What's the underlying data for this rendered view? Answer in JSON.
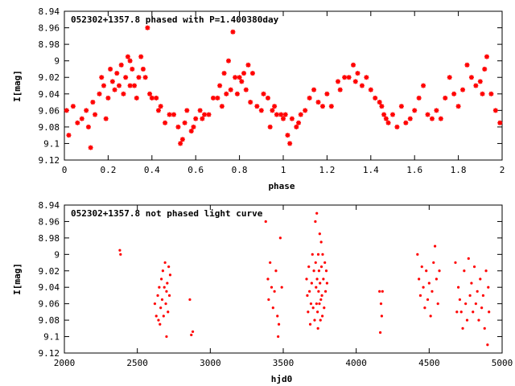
{
  "chart_data": [
    {
      "type": "scatter",
      "title": "052302+1357.8 phased with P=1.400380day",
      "xlabel": "phase",
      "ylabel": "I[mag]",
      "xlim": [
        0,
        2
      ],
      "ylim": [
        8.94,
        9.12
      ],
      "y_inverted": true,
      "x_ticks": [
        "0",
        "0.2",
        "0.4",
        "0.6",
        "0.8",
        "1",
        "1.2",
        "1.4",
        "1.6",
        "1.8",
        "2"
      ],
      "y_ticks": [
        "8.94",
        "8.96",
        "8.98",
        "9",
        "9.02",
        "9.04",
        "9.06",
        "9.08",
        "9.1",
        "9.12"
      ],
      "marker_color": "#ff0000",
      "points": [
        [
          0.01,
          9.06
        ],
        [
          0.02,
          9.09
        ],
        [
          0.04,
          9.055
        ],
        [
          0.06,
          9.075
        ],
        [
          0.08,
          9.07
        ],
        [
          0.1,
          9.06
        ],
        [
          0.11,
          9.08
        ],
        [
          0.12,
          9.105
        ],
        [
          0.13,
          9.05
        ],
        [
          0.14,
          9.065
        ],
        [
          0.16,
          9.04
        ],
        [
          0.17,
          9.02
        ],
        [
          0.18,
          9.03
        ],
        [
          0.19,
          9.07
        ],
        [
          0.2,
          9.045
        ],
        [
          0.21,
          9.01
        ],
        [
          0.22,
          9.025
        ],
        [
          0.23,
          9.035
        ],
        [
          0.24,
          9.015
        ],
        [
          0.25,
          9.03
        ],
        [
          0.26,
          9.005
        ],
        [
          0.27,
          9.04
        ],
        [
          0.28,
          9.02
        ],
        [
          0.29,
          8.995
        ],
        [
          0.3,
          9.0
        ],
        [
          0.3,
          9.03
        ],
        [
          0.31,
          9.01
        ],
        [
          0.32,
          9.03
        ],
        [
          0.33,
          9.045
        ],
        [
          0.34,
          9.02
        ],
        [
          0.35,
          8.995
        ],
        [
          0.36,
          9.01
        ],
        [
          0.37,
          9.02
        ],
        [
          0.38,
          8.96
        ],
        [
          0.39,
          9.04
        ],
        [
          0.4,
          9.045
        ],
        [
          0.42,
          9.045
        ],
        [
          0.43,
          9.06
        ],
        [
          0.44,
          9.055
        ],
        [
          0.46,
          9.075
        ],
        [
          0.48,
          9.065
        ],
        [
          0.5,
          9.065
        ],
        [
          0.52,
          9.08
        ],
        [
          0.53,
          9.1
        ],
        [
          0.54,
          9.095
        ],
        [
          0.55,
          9.075
        ],
        [
          0.56,
          9.06
        ],
        [
          0.58,
          9.085
        ],
        [
          0.59,
          9.08
        ],
        [
          0.6,
          9.07
        ],
        [
          0.62,
          9.06
        ],
        [
          0.63,
          9.07
        ],
        [
          0.64,
          9.065
        ],
        [
          0.66,
          9.065
        ],
        [
          0.68,
          9.045
        ],
        [
          0.7,
          9.045
        ],
        [
          0.71,
          9.03
        ],
        [
          0.72,
          9.055
        ],
        [
          0.73,
          9.015
        ],
        [
          0.74,
          9.04
        ],
        [
          0.75,
          9.0
        ],
        [
          0.76,
          9.035
        ],
        [
          0.77,
          8.965
        ],
        [
          0.78,
          9.02
        ],
        [
          0.79,
          9.04
        ],
        [
          0.8,
          9.02
        ],
        [
          0.81,
          9.025
        ],
        [
          0.82,
          9.015
        ],
        [
          0.83,
          9.035
        ],
        [
          0.84,
          9.005
        ],
        [
          0.85,
          9.05
        ],
        [
          0.86,
          9.015
        ],
        [
          0.88,
          9.055
        ],
        [
          0.9,
          9.06
        ],
        [
          0.91,
          9.04
        ],
        [
          0.93,
          9.045
        ],
        [
          0.94,
          9.08
        ],
        [
          0.95,
          9.06
        ],
        [
          0.96,
          9.055
        ],
        [
          0.97,
          9.065
        ],
        [
          0.99,
          9.065
        ],
        [
          1.0,
          9.07
        ],
        [
          1.01,
          9.065
        ],
        [
          1.02,
          9.09
        ],
        [
          1.03,
          9.1
        ],
        [
          1.04,
          9.07
        ],
        [
          1.06,
          9.08
        ],
        [
          1.07,
          9.075
        ],
        [
          1.08,
          9.065
        ],
        [
          1.1,
          9.06
        ],
        [
          1.12,
          9.045
        ],
        [
          1.14,
          9.035
        ],
        [
          1.16,
          9.05
        ],
        [
          1.18,
          9.055
        ],
        [
          1.2,
          9.04
        ],
        [
          1.22,
          9.055
        ],
        [
          1.25,
          9.025
        ],
        [
          1.26,
          9.035
        ],
        [
          1.28,
          9.02
        ],
        [
          1.3,
          9.02
        ],
        [
          1.32,
          9.005
        ],
        [
          1.33,
          9.025
        ],
        [
          1.34,
          9.015
        ],
        [
          1.36,
          9.03
        ],
        [
          1.38,
          9.02
        ],
        [
          1.4,
          9.035
        ],
        [
          1.42,
          9.045
        ],
        [
          1.44,
          9.05
        ],
        [
          1.45,
          9.055
        ],
        [
          1.46,
          9.065
        ],
        [
          1.47,
          9.07
        ],
        [
          1.48,
          9.075
        ],
        [
          1.5,
          9.065
        ],
        [
          1.52,
          9.08
        ],
        [
          1.54,
          9.055
        ],
        [
          1.56,
          9.075
        ],
        [
          1.58,
          9.07
        ],
        [
          1.6,
          9.06
        ],
        [
          1.62,
          9.045
        ],
        [
          1.64,
          9.03
        ],
        [
          1.66,
          9.065
        ],
        [
          1.68,
          9.07
        ],
        [
          1.7,
          9.06
        ],
        [
          1.72,
          9.07
        ],
        [
          1.74,
          9.045
        ],
        [
          1.76,
          9.02
        ],
        [
          1.78,
          9.04
        ],
        [
          1.8,
          9.055
        ],
        [
          1.82,
          9.035
        ],
        [
          1.84,
          9.005
        ],
        [
          1.86,
          9.02
        ],
        [
          1.88,
          9.03
        ],
        [
          1.9,
          9.025
        ],
        [
          1.91,
          9.04
        ],
        [
          1.92,
          9.01
        ],
        [
          1.93,
          8.995
        ],
        [
          1.95,
          9.04
        ],
        [
          1.97,
          9.06
        ],
        [
          1.99,
          9.075
        ]
      ]
    },
    {
      "type": "scatter",
      "title": "052302+1357.8 not phased light curve",
      "xlabel": "hjd0",
      "ylabel": "I[mag]",
      "xlim": [
        2000,
        5000
      ],
      "ylim": [
        8.94,
        9.12
      ],
      "y_inverted": true,
      "x_ticks": [
        "2000",
        "2500",
        "3000",
        "3500",
        "4000",
        "4500",
        "5000"
      ],
      "y_ticks": [
        "8.94",
        "8.96",
        "8.98",
        "9",
        "9.02",
        "9.04",
        "9.06",
        "9.08",
        "9.1",
        "9.12"
      ],
      "marker_color": "#ff0000",
      "points": [
        [
          2380,
          8.995
        ],
        [
          2385,
          9.0
        ],
        [
          2620,
          9.06
        ],
        [
          2630,
          9.075
        ],
        [
          2640,
          9.05
        ],
        [
          2645,
          9.08
        ],
        [
          2650,
          9.04
        ],
        [
          2655,
          9.085
        ],
        [
          2660,
          9.065
        ],
        [
          2665,
          9.03
        ],
        [
          2670,
          9.055
        ],
        [
          2675,
          9.02
        ],
        [
          2680,
          9.075
        ],
        [
          2685,
          9.04
        ],
        [
          2690,
          9.01
        ],
        [
          2695,
          9.06
        ],
        [
          2700,
          9.045
        ],
        [
          2705,
          9.035
        ],
        [
          2710,
          9.07
        ],
        [
          2715,
          9.015
        ],
        [
          2720,
          9.05
        ],
        [
          2725,
          9.025
        ],
        [
          2700,
          9.1
        ],
        [
          2860,
          9.055
        ],
        [
          2870,
          9.098
        ],
        [
          2880,
          9.094
        ],
        [
          3380,
          8.96
        ],
        [
          3395,
          9.03
        ],
        [
          3400,
          9.055
        ],
        [
          3410,
          9.01
        ],
        [
          3420,
          9.04
        ],
        [
          3430,
          9.065
        ],
        [
          3440,
          9.045
        ],
        [
          3450,
          9.02
        ],
        [
          3460,
          9.075
        ],
        [
          3465,
          9.1
        ],
        [
          3470,
          9.085
        ],
        [
          3480,
          8.98
        ],
        [
          3490,
          9.04
        ],
        [
          3660,
          9.03
        ],
        [
          3665,
          9.05
        ],
        [
          3670,
          9.07
        ],
        [
          3675,
          9.015
        ],
        [
          3680,
          9.045
        ],
        [
          3685,
          9.085
        ],
        [
          3690,
          9.06
        ],
        [
          3695,
          9.035
        ],
        [
          3700,
          9.0
        ],
        [
          3705,
          9.065
        ],
        [
          3710,
          9.02
        ],
        [
          3715,
          9.08
        ],
        [
          3720,
          8.96
        ],
        [
          3722,
          9.01
        ],
        [
          3725,
          9.04
        ],
        [
          3728,
          9.06
        ],
        [
          3730,
          8.95
        ],
        [
          3732,
          9.03
        ],
        [
          3735,
          9.07
        ],
        [
          3738,
          9.09
        ],
        [
          3740,
          9.0
        ],
        [
          3742,
          9.045
        ],
        [
          3745,
          9.02
        ],
        [
          3748,
          9.06
        ],
        [
          3750,
          8.975
        ],
        [
          3752,
          9.035
        ],
        [
          3755,
          9.08
        ],
        [
          3758,
          9.055
        ],
        [
          3760,
          8.985
        ],
        [
          3762,
          9.015
        ],
        [
          3765,
          9.05
        ],
        [
          3768,
          9.075
        ],
        [
          3770,
          9.0
        ],
        [
          3775,
          9.03
        ],
        [
          3780,
          9.065
        ],
        [
          3785,
          9.01
        ],
        [
          3790,
          9.045
        ],
        [
          3795,
          9.02
        ],
        [
          3800,
          9.035
        ],
        [
          4160,
          9.045
        ],
        [
          4165,
          9.095
        ],
        [
          4170,
          9.06
        ],
        [
          4175,
          9.075
        ],
        [
          4180,
          9.045
        ],
        [
          4420,
          9.0
        ],
        [
          4430,
          9.03
        ],
        [
          4440,
          9.05
        ],
        [
          4450,
          9.015
        ],
        [
          4460,
          9.04
        ],
        [
          4470,
          9.065
        ],
        [
          4480,
          9.02
        ],
        [
          4490,
          9.055
        ],
        [
          4500,
          9.035
        ],
        [
          4510,
          9.075
        ],
        [
          4520,
          9.045
        ],
        [
          4530,
          9.01
        ],
        [
          4540,
          8.99
        ],
        [
          4550,
          9.03
        ],
        [
          4560,
          9.06
        ],
        [
          4570,
          9.02
        ],
        [
          4680,
          9.01
        ],
        [
          4690,
          9.07
        ],
        [
          4700,
          9.04
        ],
        [
          4710,
          9.055
        ],
        [
          4720,
          9.07
        ],
        [
          4730,
          9.09
        ],
        [
          4740,
          9.02
        ],
        [
          4750,
          9.06
        ],
        [
          4760,
          9.08
        ],
        [
          4770,
          9.005
        ],
        [
          4780,
          9.05
        ],
        [
          4790,
          9.035
        ],
        [
          4800,
          9.07
        ],
        [
          4810,
          9.015
        ],
        [
          4820,
          9.06
        ],
        [
          4830,
          9.045
        ],
        [
          4840,
          9.08
        ],
        [
          4850,
          9.03
        ],
        [
          4860,
          9.065
        ],
        [
          4870,
          9.05
        ],
        [
          4880,
          9.09
        ],
        [
          4890,
          9.02
        ],
        [
          4900,
          9.11
        ],
        [
          4905,
          9.04
        ],
        [
          4910,
          9.07
        ]
      ]
    }
  ]
}
